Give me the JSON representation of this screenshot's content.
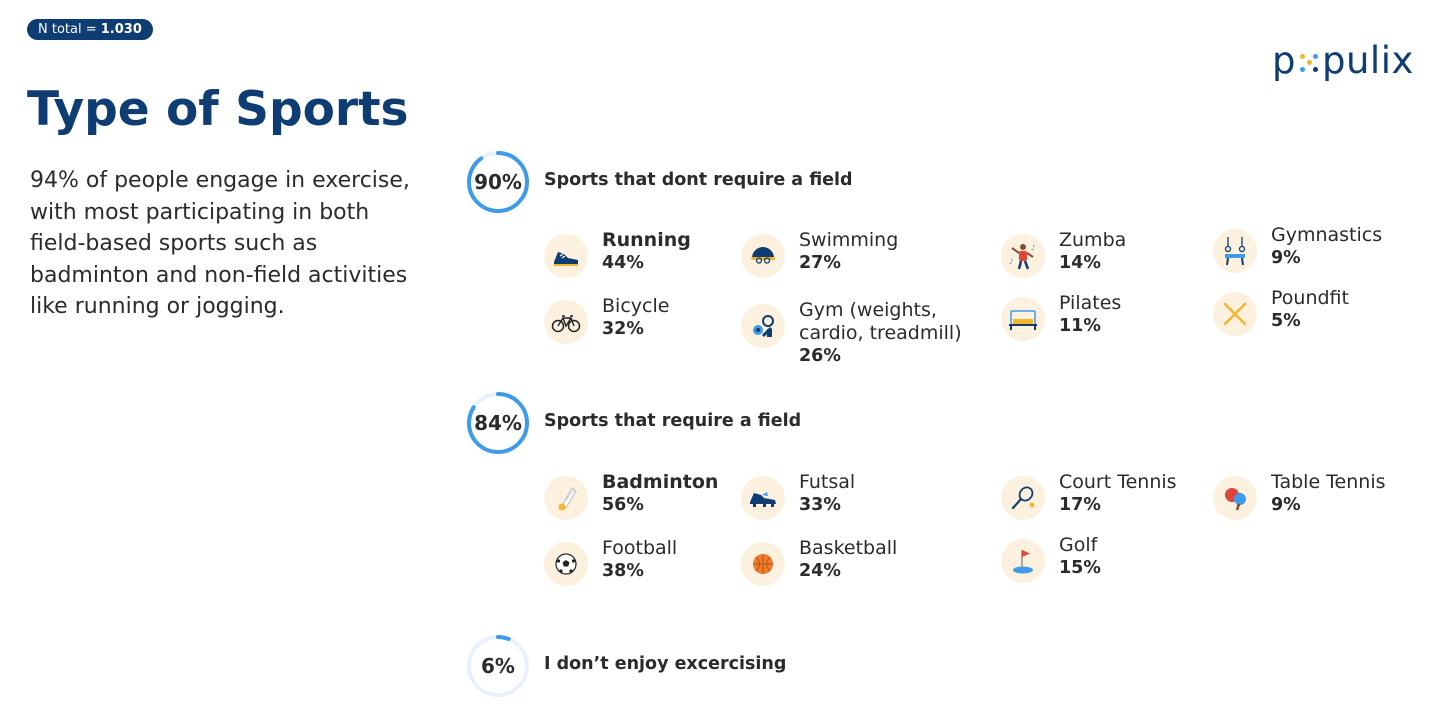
{
  "badge": {
    "prefix": "N total = ",
    "value": "1.030"
  },
  "logo": {
    "left": "p",
    "right": "pulix"
  },
  "title": "Type of Sports",
  "description": "94% of people engage in exercise, with most participating in both field-based sports such as badminton and non-field activities like running or jogging.",
  "colors": {
    "navy": "#0d3d73",
    "accent_blue": "#3d9be9",
    "ring_track": "#e8f1fb",
    "icon_bg": "#fbf1de"
  },
  "sections": [
    {
      "percent": "90%",
      "fraction": 0.9,
      "title": "Sports that dont require a field",
      "items": [
        {
          "label": "Running",
          "value": "44%",
          "icon": "running-shoe-icon"
        },
        {
          "label": "Swimming",
          "value": "27%",
          "icon": "swimmer-icon"
        },
        {
          "label": "Zumba",
          "value": "14%",
          "icon": "zumba-dancer-icon"
        },
        {
          "label": "Gymnastics",
          "value": "9%",
          "icon": "gymnastics-rings-icon"
        },
        {
          "label": "Bicycle",
          "value": "32%",
          "icon": "bicycle-icon"
        },
        {
          "label": "Gym (weights,\ncardio, treadmill)",
          "value": "26%",
          "icon": "dumbbell-icon"
        },
        {
          "label": "Pilates",
          "value": "11%",
          "icon": "pilates-reformer-icon"
        },
        {
          "label": "Poundfit",
          "value": "5%",
          "icon": "crossed-sticks-icon"
        }
      ]
    },
    {
      "percent": "84%",
      "fraction": 0.84,
      "title": "Sports that require a field",
      "items": [
        {
          "label": "Badminton",
          "value": "56%",
          "icon": "shuttlecock-icon"
        },
        {
          "label": "Futsal",
          "value": "33%",
          "icon": "futsal-shoe-icon"
        },
        {
          "label": "Court Tennis",
          "value": "17%",
          "icon": "tennis-racket-icon"
        },
        {
          "label": "Table Tennis",
          "value": "9%",
          "icon": "ping-pong-paddle-icon"
        },
        {
          "label": "Football",
          "value": "38%",
          "icon": "soccer-ball-icon"
        },
        {
          "label": "Basketball",
          "value": "24%",
          "icon": "basketball-icon"
        },
        {
          "label": "Golf",
          "value": "15%",
          "icon": "golf-flag-icon"
        }
      ]
    },
    {
      "percent": "6%",
      "fraction": 0.06,
      "title": "I don’t enjoy excercising",
      "items": []
    }
  ]
}
